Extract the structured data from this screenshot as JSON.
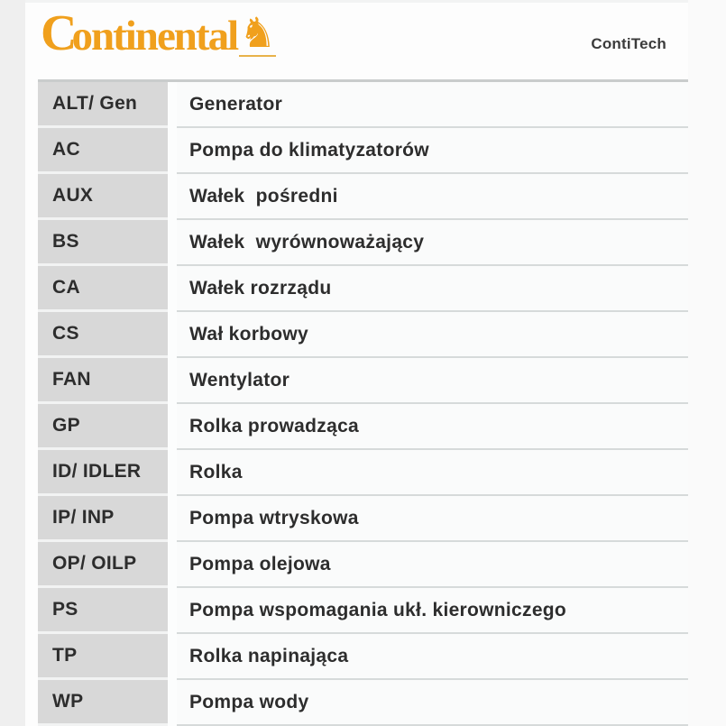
{
  "brand": {
    "logo_text_initial": "C",
    "logo_text_rest": "ontinental",
    "logo_color": "#f0a01d",
    "horse_glyph": "♞",
    "subbrand": "ContiTech"
  },
  "table": {
    "colors": {
      "abbr_bg": "#d8d8d8",
      "desc_bg": "#fafbfb",
      "separator": "#d6dada",
      "text": "#2d2d2d"
    },
    "rows": [
      {
        "abbr": "ALT/ Gen",
        "desc": "Generator"
      },
      {
        "abbr": "AC",
        "desc": "Pompa do klimatyzatorów"
      },
      {
        "abbr": "AUX",
        "desc": "Wałek  pośredni"
      },
      {
        "abbr": "BS",
        "desc": "Wałek  wyrównoważający"
      },
      {
        "abbr": "CA",
        "desc": "Wałek rozrządu"
      },
      {
        "abbr": "CS",
        "desc": "Wał korbowy"
      },
      {
        "abbr": "FAN",
        "desc": "Wentylator"
      },
      {
        "abbr": "GP",
        "desc": "Rolka prowadząca"
      },
      {
        "abbr": "ID/ IDLER",
        "desc": "Rolka"
      },
      {
        "abbr": "IP/ INP",
        "desc": "Pompa wtryskowa"
      },
      {
        "abbr": "OP/ OILP",
        "desc": "Pompa olejowa"
      },
      {
        "abbr": "PS",
        "desc": "Pompa wspomagania ukł. kierowniczego"
      },
      {
        "abbr": "TP",
        "desc": "Rolka napinająca"
      },
      {
        "abbr": "WP",
        "desc": "Pompa wody"
      }
    ]
  }
}
